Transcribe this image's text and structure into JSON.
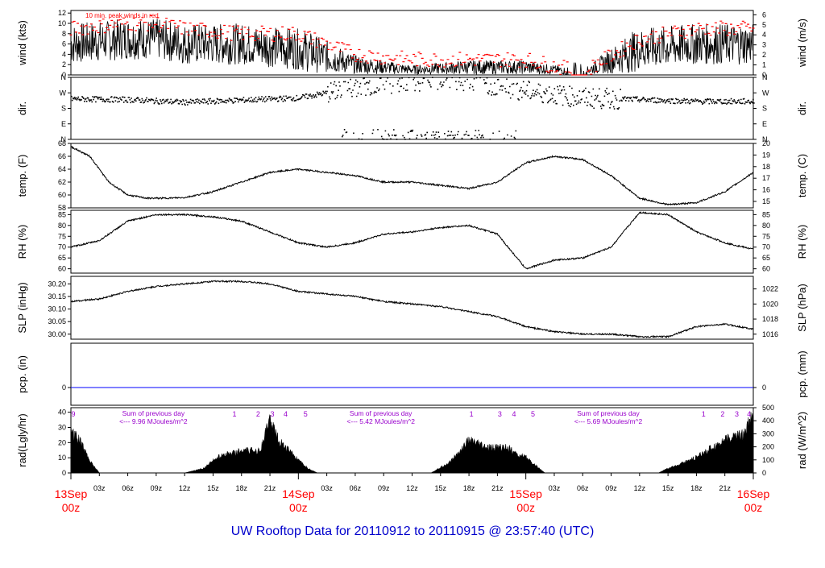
{
  "title": "UW Rooftop Data for 20110912  to  20110915 @ 23:57:40  (UTC)",
  "colors": {
    "text_red": "#ff0000",
    "title_blue": "#0000cc",
    "purple": "#9900cc",
    "pcp_line": "#0000ff",
    "peak": "#ff0000"
  },
  "time_axis": {
    "hour_ticks": [
      "03z",
      "06z",
      "09z",
      "12z",
      "15z",
      "18z",
      "21z"
    ],
    "day_labels": [
      {
        "date": "13Sep",
        "hour": "00z",
        "day": 0
      },
      {
        "date": "14Sep",
        "hour": "00z",
        "day": 1
      },
      {
        "date": "15Sep",
        "hour": "00z",
        "day": 2
      },
      {
        "date": "16Sep",
        "hour": "00z",
        "day": 3
      }
    ]
  },
  "chart_data": [
    {
      "id": "wind",
      "type": "line",
      "ylabel_left": "wind (kts)",
      "ylabel_right": "wind (m/s)",
      "ylim": [
        0,
        12.5
      ],
      "left_ticks": [
        0,
        2,
        4,
        6,
        8,
        10,
        12
      ],
      "right_ticks": [
        {
          "label": "0",
          "value": 0
        },
        {
          "label": "1",
          "value": 1.944
        },
        {
          "label": "2",
          "value": 3.888
        },
        {
          "label": "3",
          "value": 5.832
        },
        {
          "label": "4",
          "value": 7.776
        },
        {
          "label": "5",
          "value": 9.72
        },
        {
          "label": "6",
          "value": 11.664
        }
      ],
      "annotation": "10 min. peak winds in red",
      "series": [
        {
          "name": "wind speed",
          "x_hours": [
            0,
            6,
            9,
            12,
            18,
            24,
            30,
            36,
            42,
            48,
            54,
            60,
            66,
            72
          ],
          "y": [
            6,
            7,
            7,
            6,
            6,
            5,
            2,
            1,
            1.5,
            1.5,
            0.5,
            5,
            6,
            6
          ]
        },
        {
          "name": "10 min. peak winds",
          "x_hours": [
            0,
            6,
            9,
            12,
            18,
            24,
            30,
            36,
            42,
            48,
            54,
            60,
            66,
            72
          ],
          "y": [
            9,
            10,
            10,
            9,
            8,
            8,
            4,
            3,
            3,
            3,
            0.5,
            7,
            9,
            9
          ]
        }
      ]
    },
    {
      "id": "dir",
      "type": "scatter",
      "ylabel_left": "dir.",
      "ylabel_right": "dir.",
      "ylim": [
        0,
        360
      ],
      "left_ticks": [
        {
          "label": "N",
          "value": 0
        },
        {
          "label": "E",
          "value": 90
        },
        {
          "label": "S",
          "value": 180
        },
        {
          "label": "W",
          "value": 270
        },
        {
          "label": "N",
          "value": 360
        }
      ],
      "right_ticks": [
        {
          "label": "N",
          "value": 0
        },
        {
          "label": "E",
          "value": 90
        },
        {
          "label": "S",
          "value": 180
        },
        {
          "label": "W",
          "value": 270
        },
        {
          "label": "N",
          "value": 360
        }
      ],
      "series": [
        {
          "name": "wind direction",
          "x_hours": [
            0,
            6,
            12,
            24,
            30,
            36,
            42,
            48,
            54,
            60,
            66,
            72
          ],
          "y": [
            235,
            230,
            215,
            240,
            300,
            340,
            340,
            280,
            240,
            230,
            220,
            220
          ]
        }
      ]
    },
    {
      "id": "temp",
      "type": "line",
      "ylabel_left": "temp. (F)",
      "ylabel_right": "temp. (C)",
      "ylim": [
        58,
        68
      ],
      "left_ticks": [
        58,
        60,
        62,
        64,
        66,
        68
      ],
      "right_ticks": [
        {
          "label": "15",
          "value": 59
        },
        {
          "label": "16",
          "value": 60.8
        },
        {
          "label": "17",
          "value": 62.6
        },
        {
          "label": "18",
          "value": 64.4
        },
        {
          "label": "19",
          "value": 66.2
        },
        {
          "label": "20",
          "value": 68
        }
      ],
      "series": [
        {
          "name": "temperature",
          "x_hours": [
            0,
            2,
            4,
            6,
            8,
            10,
            12,
            15,
            18,
            21,
            24,
            27,
            30,
            33,
            36,
            39,
            42,
            45,
            48,
            51,
            54,
            57,
            60,
            63,
            66,
            69,
            72
          ],
          "y": [
            67.5,
            66,
            62,
            60,
            59.5,
            59.5,
            59.6,
            60.5,
            62,
            63.5,
            64,
            63.5,
            63,
            62,
            62,
            61.5,
            61,
            62,
            65,
            66,
            65.5,
            63,
            59.5,
            58.5,
            58.8,
            60.5,
            63.5
          ]
        }
      ]
    },
    {
      "id": "rh",
      "type": "line",
      "ylabel_left": "RH (%)",
      "ylabel_right": "RH (%)",
      "ylim": [
        58,
        87
      ],
      "left_ticks": [
        60,
        65,
        70,
        75,
        80,
        85
      ],
      "right_ticks": [
        {
          "label": "60",
          "value": 60
        },
        {
          "label": "65",
          "value": 65
        },
        {
          "label": "70",
          "value": 70
        },
        {
          "label": "75",
          "value": 75
        },
        {
          "label": "80",
          "value": 80
        },
        {
          "label": "85",
          "value": 85
        }
      ],
      "series": [
        {
          "name": "relative humidity",
          "x_hours": [
            0,
            3,
            6,
            9,
            12,
            15,
            18,
            21,
            24,
            27,
            30,
            33,
            36,
            39,
            42,
            45,
            48,
            51,
            54,
            57,
            60,
            63,
            66,
            69,
            72
          ],
          "y": [
            70,
            73,
            82,
            85,
            85,
            84,
            82,
            77,
            72,
            70,
            72,
            76,
            77,
            79,
            80,
            76,
            60,
            64,
            65,
            70,
            86,
            85,
            77,
            72,
            69
          ]
        }
      ]
    },
    {
      "id": "slp",
      "type": "line",
      "ylabel_left": "SLP (inHg)",
      "ylabel_right": "SLP (hPa)",
      "ylim": [
        29.98,
        30.23
      ],
      "left_ticks": [
        30.0,
        30.05,
        30.1,
        30.15,
        30.2
      ],
      "left_tick_labels": [
        "30.00",
        "30.05",
        "30.10",
        "30.15",
        "30.20"
      ],
      "right_ticks": [
        {
          "label": "1016",
          "value": 30.0
        },
        {
          "label": "1018",
          "value": 30.06
        },
        {
          "label": "1020",
          "value": 30.12
        },
        {
          "label": "1022",
          "value": 30.18
        }
      ],
      "series": [
        {
          "name": "sea level pressure",
          "x_hours": [
            0,
            3,
            6,
            9,
            12,
            15,
            18,
            21,
            24,
            27,
            30,
            33,
            36,
            39,
            42,
            45,
            48,
            51,
            54,
            57,
            60,
            63,
            66,
            69,
            72
          ],
          "y": [
            30.13,
            30.14,
            30.17,
            30.19,
            30.2,
            30.21,
            30.21,
            30.2,
            30.17,
            30.16,
            30.15,
            30.13,
            30.12,
            30.11,
            30.09,
            30.07,
            30.03,
            30.01,
            30.0,
            30.0,
            29.99,
            29.99,
            30.03,
            30.04,
            30.02
          ]
        }
      ]
    },
    {
      "id": "pcp",
      "type": "line",
      "ylabel_left": "pcp. (in)",
      "ylabel_right": "pcp. (mm)",
      "ylim": [
        -0.1,
        0.25
      ],
      "left_ticks": [
        {
          "label": "0",
          "value": 0
        }
      ],
      "right_ticks": [
        {
          "label": "0",
          "value": 0
        }
      ],
      "series": [
        {
          "name": "precipitation",
          "x_hours": [
            0,
            72
          ],
          "y": [
            0,
            0
          ]
        }
      ]
    },
    {
      "id": "rad",
      "type": "area",
      "ylabel_left": "rad(Lgly/hr)",
      "ylabel_right": "rad (W/m^2)",
      "ylim": [
        0,
        43
      ],
      "left_ticks": [
        0,
        10,
        20,
        30,
        40
      ],
      "right_ticks": [
        {
          "label": "0",
          "value": 0
        },
        {
          "label": "100",
          "value": 8.6
        },
        {
          "label": "200",
          "value": 17.2
        },
        {
          "label": "300",
          "value": 25.8
        },
        {
          "label": "400",
          "value": 34.4
        },
        {
          "label": "500",
          "value": 43
        }
      ],
      "series": [
        {
          "name": "solar radiation",
          "x_hours": [
            0,
            1,
            2,
            3,
            12,
            14,
            15,
            16,
            18,
            20,
            21,
            22,
            23,
            24,
            25,
            26,
            38,
            40,
            42,
            44,
            46,
            47,
            48,
            49,
            50,
            62,
            63,
            64,
            66,
            68,
            70,
            71,
            72
          ],
          "y": [
            28,
            20,
            8,
            0,
            0,
            3,
            8,
            12,
            14,
            15,
            35,
            20,
            15,
            8,
            3,
            0,
            0,
            7,
            21,
            16,
            17,
            12,
            10,
            5,
            0,
            0,
            3,
            5,
            10,
            18,
            24,
            25,
            38
          ]
        }
      ],
      "day_notes": [
        {
          "line1": "Sum of previous day",
          "line2": "<--- 9.96 MJoules/m^2",
          "day": 0
        },
        {
          "line1": "Sum of previous day",
          "line2": "<--- 5.42 MJoules/m^2",
          "day": 1
        },
        {
          "line1": "Sum of previous day",
          "line2": "<--- 5.69 MJoules/m^2",
          "day": 2
        }
      ],
      "hour_marks": [
        {
          "label": "9",
          "hour": 0
        },
        {
          "label": "1",
          "hour": 17
        },
        {
          "label": "2",
          "hour": 19.5
        },
        {
          "label": "3",
          "hour": 21
        },
        {
          "label": "4",
          "hour": 22.4
        },
        {
          "label": "5",
          "hour": 24.5
        },
        {
          "label": "1",
          "hour": 42
        },
        {
          "label": "3",
          "hour": 45
        },
        {
          "label": "4",
          "hour": 46.5
        },
        {
          "label": "5",
          "hour": 48.5
        },
        {
          "label": "1",
          "hour": 66.5
        },
        {
          "label": "2",
          "hour": 68.5
        },
        {
          "label": "3",
          "hour": 70
        },
        {
          "label": "4",
          "hour": 71.3
        }
      ]
    }
  ]
}
